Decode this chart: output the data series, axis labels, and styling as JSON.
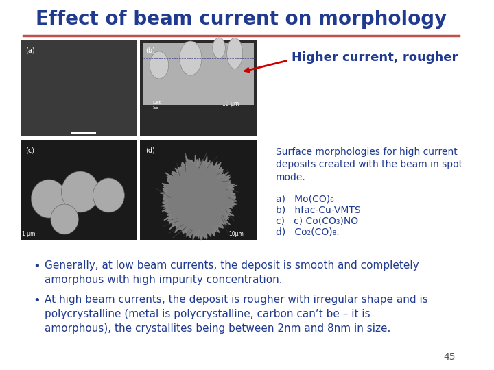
{
  "title": "Effect of beam current on morphology",
  "title_color": "#1F3A8F",
  "title_fontsize": 20,
  "separator_color": "#C0504D",
  "bg_color": "#FFFFFF",
  "annotation_arrow_text": "Higher current, rougher",
  "annotation_color": "#1F3A8F",
  "annotation_fontsize": 13,
  "arrow_color": "#CC0000",
  "caption_title": "Surface morphologies for high current\ndeposits created with the beam in spot\nmode.",
  "caption_items": [
    "a)   Mo(CO)₆",
    "b)   hfac-Cu-VMTS",
    "c)   c) Co(CO₃)NO",
    "d)   Co₂(CO)₈."
  ],
  "caption_color": "#1F3A8F",
  "caption_fontsize": 10,
  "bullet1_bold": "Generally, at low beam currents, the deposit is smooth and completely\namorphous with high impurity concentration.",
  "bullet2_bold": "At high beam currents, the deposit is rougher with irregular shape and is\npolycrystalline (metal is polycrystalline, carbon can’t be – it is\namorphous), the crystallites being between 2nm and 8nm in size.",
  "bullet_color": "#1F3A8F",
  "bullet_fontsize": 11,
  "page_number": "45",
  "page_num_color": "#555555",
  "page_num_fontsize": 10
}
